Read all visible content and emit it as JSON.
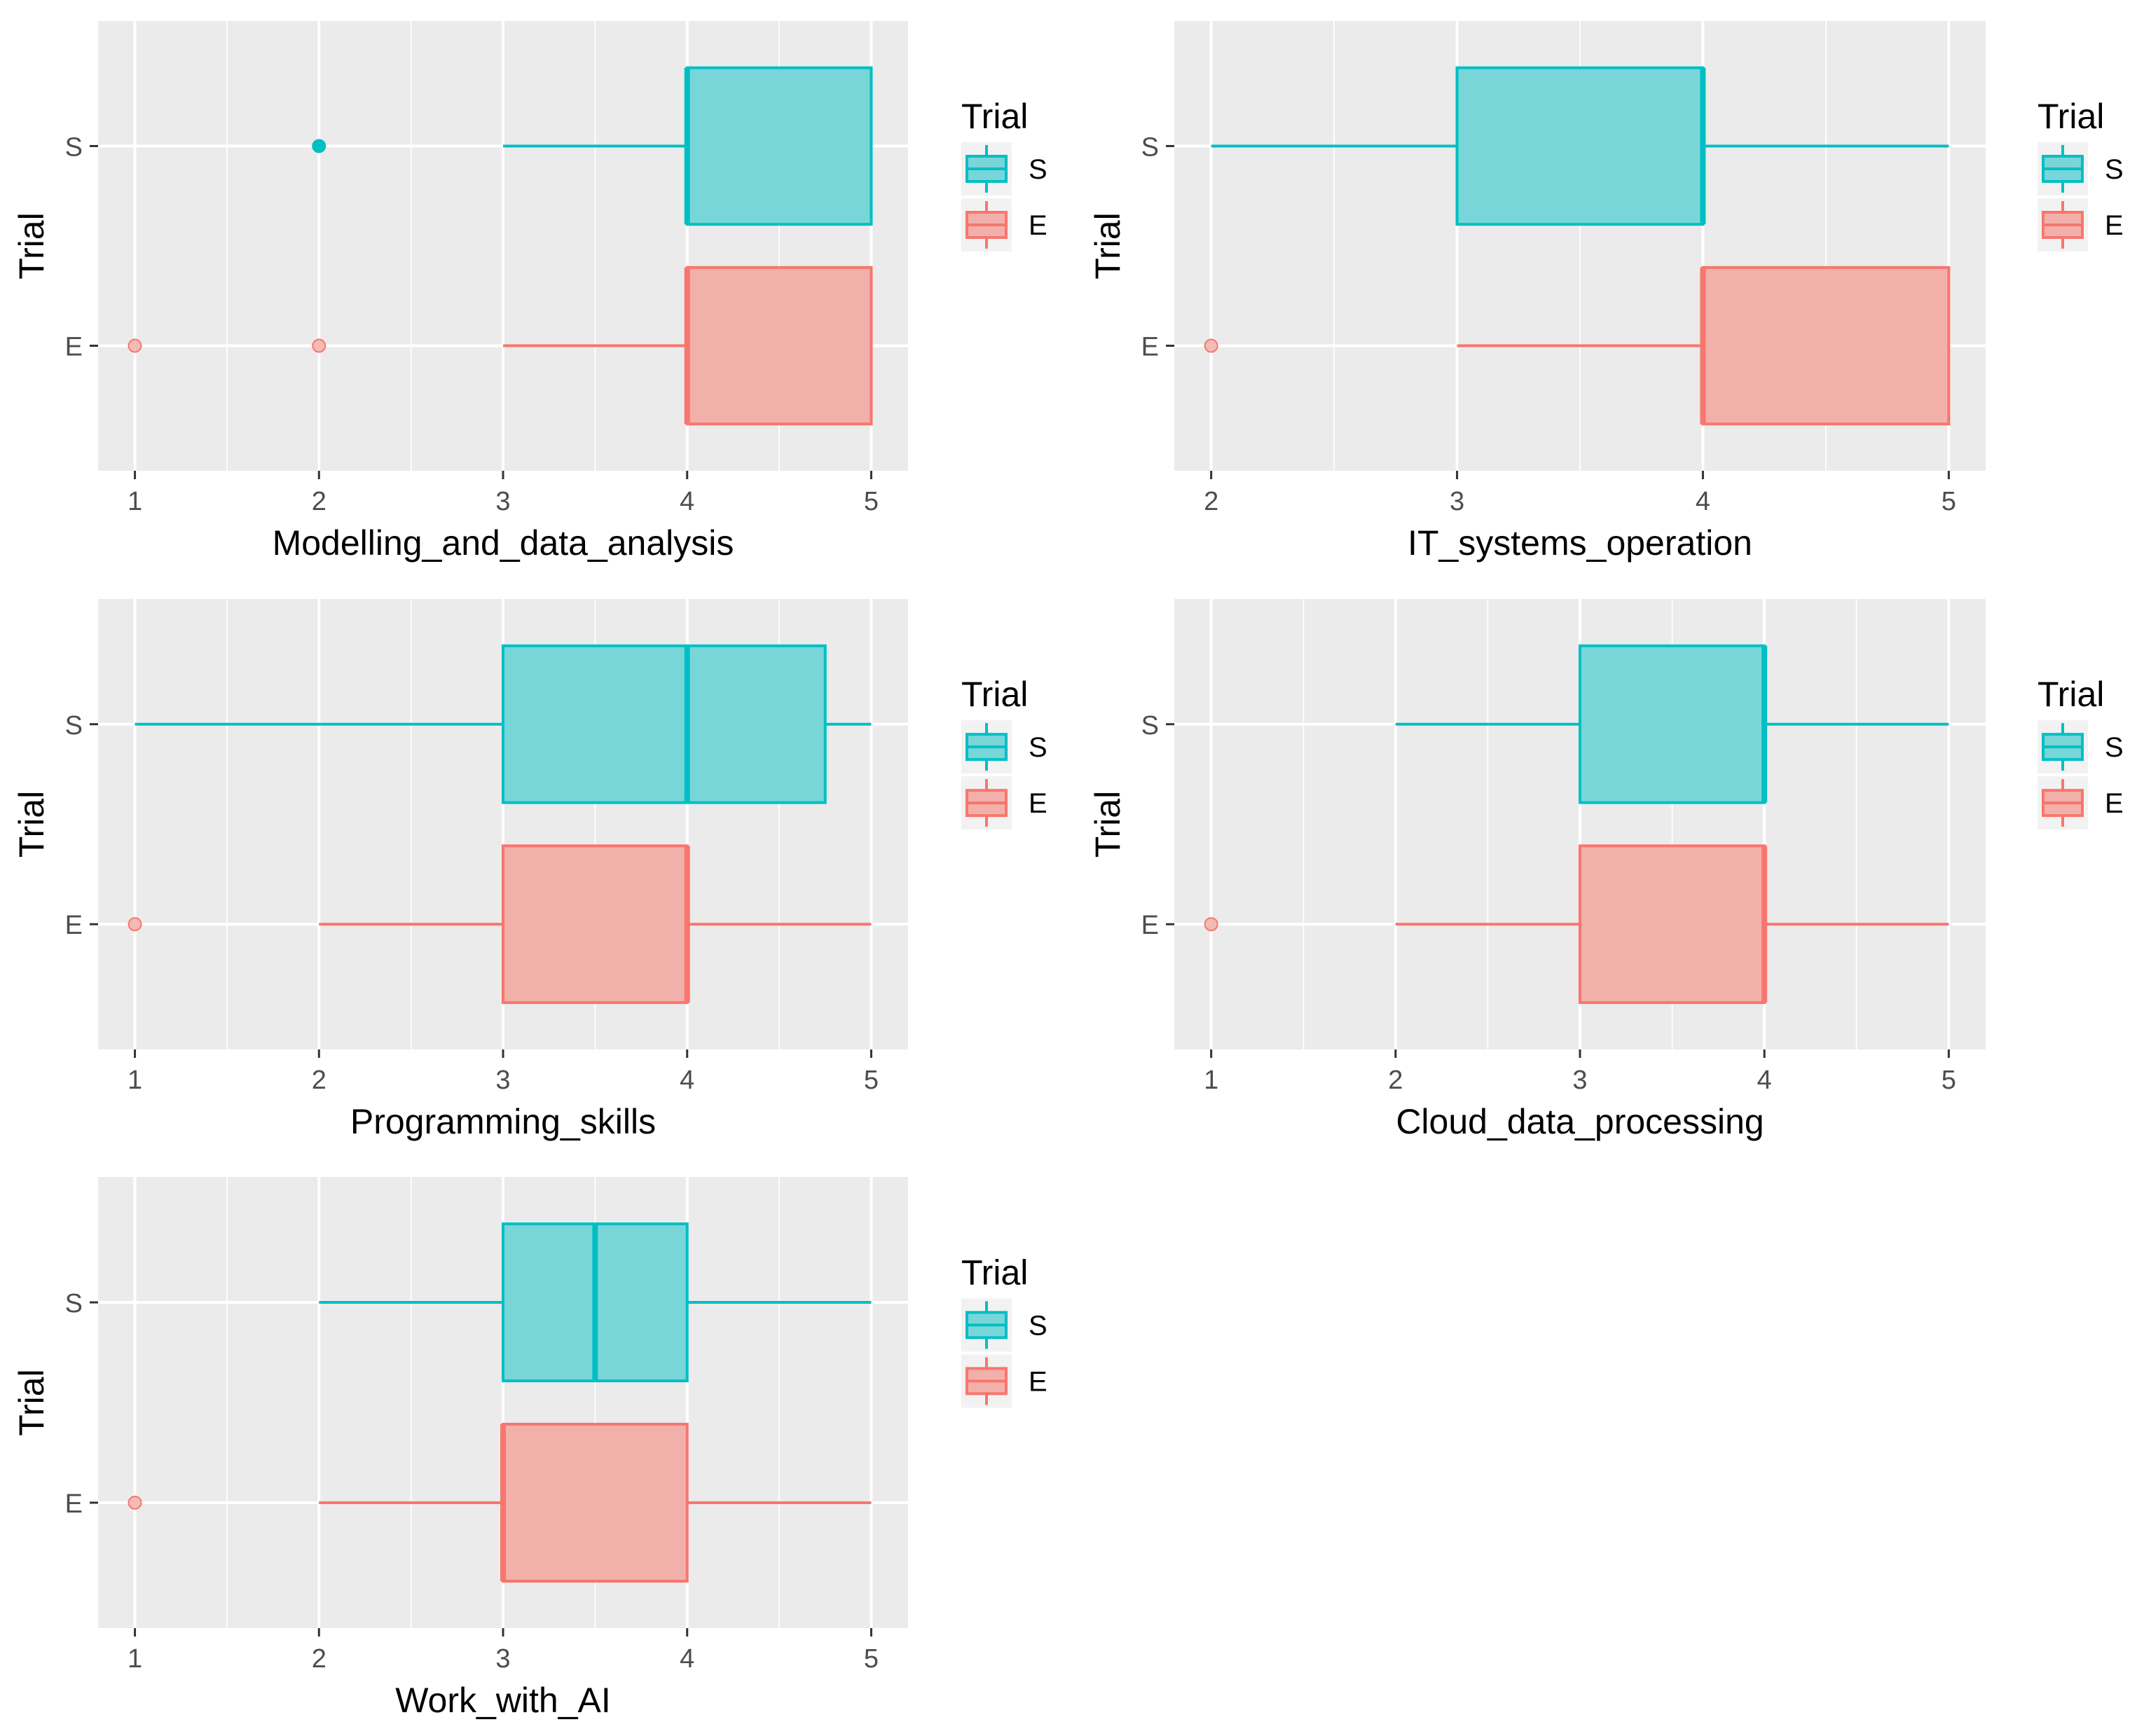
{
  "chart_data": [
    {
      "type": "boxplot",
      "orientation": "horizontal",
      "xlabel": "Modelling_and_data_analysis",
      "ylabel": "Trial",
      "xlim": [
        0.8,
        5.2
      ],
      "xticks": [
        1,
        2,
        3,
        4,
        5
      ],
      "legend": {
        "title": "Trial",
        "entries": [
          "S",
          "E"
        ],
        "position": "right"
      },
      "series": [
        {
          "name": "S",
          "min": 3,
          "q1": 4,
          "median": 4,
          "q3": 5,
          "max": 5,
          "outliers": [
            2
          ]
        },
        {
          "name": "E",
          "min": 3,
          "q1": 4,
          "median": 4,
          "q3": 5,
          "max": 5,
          "outliers": [
            1,
            2
          ]
        }
      ]
    },
    {
      "type": "boxplot",
      "orientation": "horizontal",
      "xlabel": "IT_systems_operation",
      "ylabel": "Trial",
      "xlim": [
        1.85,
        5.15
      ],
      "xticks": [
        2,
        3,
        4,
        5
      ],
      "legend": {
        "title": "Trial",
        "entries": [
          "S",
          "E"
        ],
        "position": "right"
      },
      "series": [
        {
          "name": "S",
          "min": 2,
          "q1": 3,
          "median": 4,
          "q3": 4,
          "max": 5,
          "outliers": []
        },
        {
          "name": "E",
          "min": 3,
          "q1": 4,
          "median": 4,
          "q3": 5,
          "max": 5,
          "outliers": [
            2
          ]
        }
      ]
    },
    {
      "type": "boxplot",
      "orientation": "horizontal",
      "xlabel": "Programming_skills",
      "ylabel": "Trial",
      "xlim": [
        0.8,
        5.2
      ],
      "xticks": [
        1,
        2,
        3,
        4,
        5
      ],
      "legend": {
        "title": "Trial",
        "entries": [
          "S",
          "E"
        ],
        "position": "right"
      },
      "series": [
        {
          "name": "S",
          "min": 1,
          "q1": 3,
          "median": 4,
          "q3": 4.75,
          "max": 5,
          "outliers": []
        },
        {
          "name": "E",
          "min": 2,
          "q1": 3,
          "median": 4,
          "q3": 4,
          "max": 5,
          "outliers": [
            1
          ]
        }
      ]
    },
    {
      "type": "boxplot",
      "orientation": "horizontal",
      "xlabel": "Cloud_data_processing",
      "ylabel": "Trial",
      "xlim": [
        0.8,
        5.2
      ],
      "xticks": [
        1,
        2,
        3,
        4,
        5
      ],
      "legend": {
        "title": "Trial",
        "entries": [
          "S",
          "E"
        ],
        "position": "right"
      },
      "series": [
        {
          "name": "S",
          "min": 2,
          "q1": 3,
          "median": 4,
          "q3": 4,
          "max": 5,
          "outliers": []
        },
        {
          "name": "E",
          "min": 2,
          "q1": 3,
          "median": 4,
          "q3": 4,
          "max": 5,
          "outliers": [
            1
          ]
        }
      ]
    },
    {
      "type": "boxplot",
      "orientation": "horizontal",
      "xlabel": "Work_with_AI",
      "ylabel": "Trial",
      "xlim": [
        0.8,
        5.2
      ],
      "xticks": [
        1,
        2,
        3,
        4,
        5
      ],
      "legend": {
        "title": "Trial",
        "entries": [
          "S",
          "E"
        ],
        "position": "right"
      },
      "series": [
        {
          "name": "S",
          "min": 2,
          "q1": 3,
          "median": 3.5,
          "q3": 4,
          "max": 5,
          "outliers": []
        },
        {
          "name": "E",
          "min": 2,
          "q1": 3,
          "median": 3,
          "q3": 4,
          "max": 5,
          "outliers": [
            1
          ]
        }
      ]
    }
  ],
  "colors": {
    "S_fill": "#79d6d8",
    "S_stroke": "#00bfc4",
    "E_fill": "#f2b0ab",
    "E_stroke": "#f8766d"
  }
}
